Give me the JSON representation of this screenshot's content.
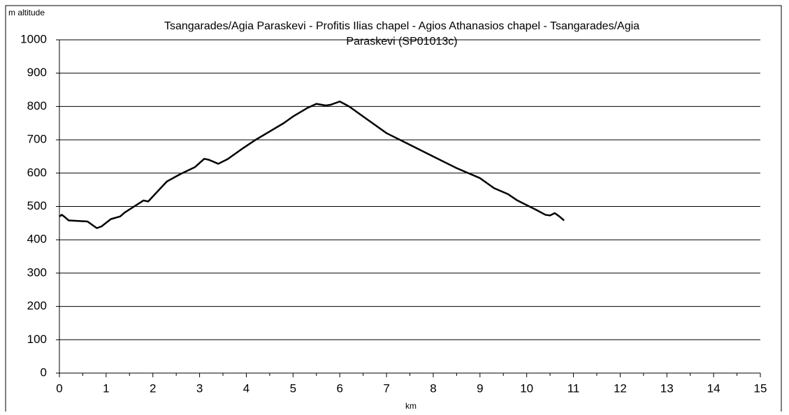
{
  "chart_data": {
    "type": "line",
    "title": [
      "Tsangarades/Agia Paraskevi - Profitis Ilias chapel - Agios Athanasios chapel - Tsangarades/Agia",
      "Paraskevi (SP01013c)"
    ],
    "ylabel": "m altitude",
    "xlabel": "km",
    "xlim": [
      0,
      15
    ],
    "ylim": [
      0,
      1000
    ],
    "xticks": [
      0,
      1,
      2,
      3,
      4,
      5,
      6,
      7,
      8,
      9,
      10,
      11,
      12,
      13,
      14,
      15
    ],
    "yticks": [
      0,
      100,
      200,
      300,
      400,
      500,
      600,
      700,
      800,
      900,
      1000
    ],
    "grid": true,
    "series": [
      {
        "color": "#000000",
        "x": [
          0,
          0.05,
          0.1,
          0.2,
          0.6,
          0.7,
          0.8,
          0.9,
          1.1,
          1.3,
          1.4,
          1.6,
          1.8,
          1.9,
          2.1,
          2.3,
          2.6,
          2.9,
          3.1,
          3.2,
          3.4,
          3.6,
          3.9,
          4.2,
          4.5,
          4.8,
          5.0,
          5.3,
          5.5,
          5.7,
          5.8,
          6.0,
          6.2,
          6.6,
          7.0,
          7.5,
          8.0,
          8.5,
          9.0,
          9.3,
          9.6,
          9.8,
          10.2,
          10.4,
          10.5,
          10.6,
          10.7,
          10.8
        ],
        "values": [
          470,
          475,
          470,
          458,
          455,
          445,
          435,
          440,
          462,
          470,
          482,
          500,
          518,
          515,
          545,
          575,
          598,
          618,
          643,
          640,
          628,
          642,
          672,
          700,
          725,
          750,
          770,
          795,
          808,
          803,
          805,
          815,
          800,
          760,
          720,
          685,
          650,
          615,
          585,
          555,
          537,
          518,
          490,
          475,
          473,
          480,
          470,
          458
        ]
      }
    ]
  }
}
